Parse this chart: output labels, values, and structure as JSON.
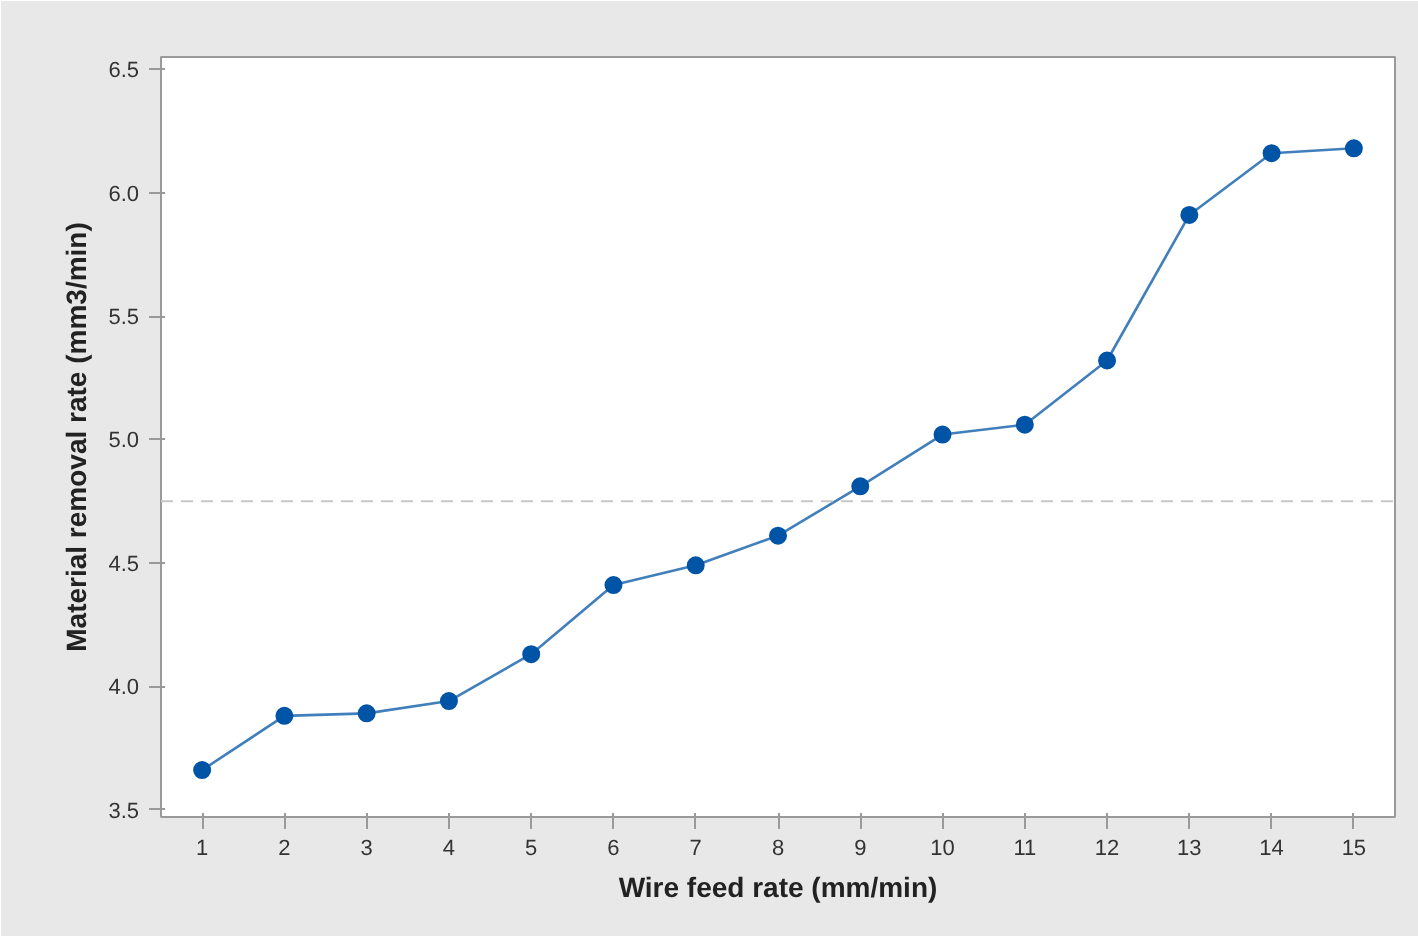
{
  "chart_data": {
    "type": "line",
    "xlabel": "Wire feed rate (mm/min)",
    "ylabel": "Material removal rate (mm3/min)",
    "x": [
      1,
      2,
      3,
      4,
      5,
      6,
      7,
      8,
      9,
      10,
      11,
      12,
      13,
      14,
      15
    ],
    "series": [
      {
        "color": "#0054a6",
        "values": [
          3.66,
          3.88,
          3.89,
          3.94,
          4.13,
          4.41,
          4.49,
          4.61,
          4.81,
          5.02,
          5.06,
          5.32,
          5.91,
          6.16,
          6.18
        ]
      }
    ],
    "xlim": [
      0.5,
      15.5
    ],
    "xticks": [
      1,
      2,
      3,
      4,
      5,
      6,
      7,
      8,
      9,
      10,
      11,
      12,
      13,
      14,
      15
    ],
    "ylim": [
      3.47,
      6.55
    ],
    "yticks": [
      {
        "value": 3.5,
        "label": "3.5"
      },
      {
        "value": 4.0,
        "label": "4.0"
      },
      {
        "value": 4.5,
        "label": "4.5"
      },
      {
        "value": 5.0,
        "label": "5.0"
      },
      {
        "value": 5.5,
        "label": "5.5"
      },
      {
        "value": 6.0,
        "label": "6.0"
      },
      {
        "value": 6.5,
        "label": "6.5"
      }
    ],
    "ref_lines": [
      {
        "axis": "y",
        "value": 4.75,
        "label": null,
        "color": "#c8c8c8",
        "line_style": "dashed"
      }
    ],
    "grid": false,
    "marker": "circle",
    "line_style": "solid"
  }
}
